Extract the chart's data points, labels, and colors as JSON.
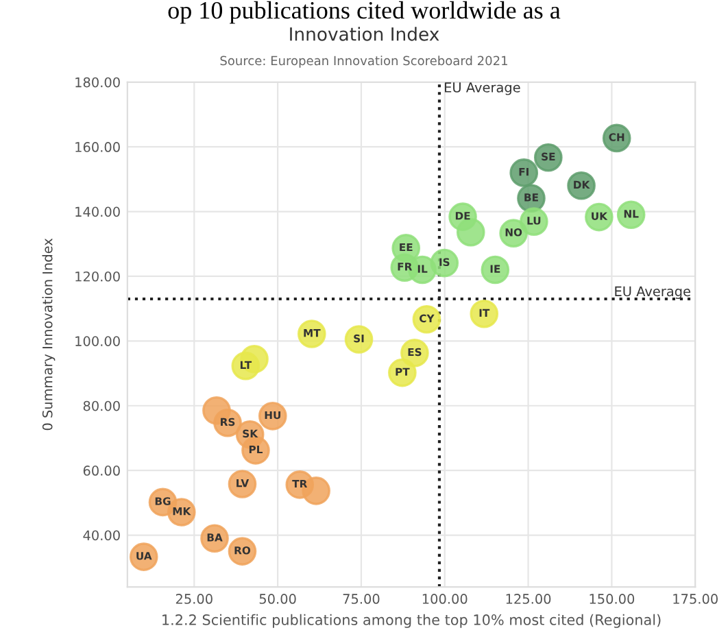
{
  "chart_data": {
    "type": "scatter",
    "title": "Innovation Index",
    "subtitle": "Source: European Innovation Scoreboard 2021",
    "xlabel": "1.2.2 Scientific publications among the top 10% most cited (Regional)",
    "ylabel": "0 Summary Innovation Index",
    "series": [
      {
        "color": "#5e9e6c",
        "x": [
          151.5,
          131,
          123.7,
          140.9,
          125.9
        ],
        "values": [
          162.7,
          156.7,
          152,
          148,
          144.1
        ]
      },
      {
        "color": "#8fdf7a",
        "x": [
          105.4,
          107.8,
          120.6,
          126.7,
          146.2,
          155.8,
          88.4,
          88,
          93.3,
          99.9,
          115.1
        ],
        "values": [
          138.4,
          133.6,
          133.3,
          136.9,
          138.3,
          139,
          128.7,
          122.7,
          122,
          124.1,
          122
        ]
      },
      {
        "color": "#e6e84c",
        "x": [
          94.6,
          111.8,
          91,
          87.3,
          60.2,
          74.3,
          43,
          40.4
        ],
        "values": [
          106.7,
          108.4,
          96.3,
          90.2,
          102.2,
          100.5,
          94.4,
          92.3
        ]
      },
      {
        "color": "#f0a35c",
        "x": [
          31.7,
          35,
          48.5,
          41.7,
          43.4,
          39.4,
          56.6,
          61.5,
          15.6,
          21.2,
          31.1,
          39.4,
          9.9
        ],
        "values": [
          78.5,
          74.7,
          76.8,
          71.1,
          66.2,
          55.8,
          55.6,
          53.7,
          50.2,
          47.1,
          39,
          35,
          33.3
        ]
      }
    ],
    "xlim": [
      5,
      175
    ],
    "ylim": [
      24,
      180
    ],
    "xticks": [
      {
        "value": 25,
        "label": "25.00"
      },
      {
        "value": 50,
        "label": "50.00"
      },
      {
        "value": 75,
        "label": "75.00"
      },
      {
        "value": 100,
        "label": "100.00"
      },
      {
        "value": 125,
        "label": "125.00"
      },
      {
        "value": 150,
        "label": "150.00"
      },
      {
        "value": 175,
        "label": "175.00"
      }
    ],
    "yticks": [
      {
        "value": 40,
        "label": "40.00"
      },
      {
        "value": 60,
        "label": "60.00"
      },
      {
        "value": 80,
        "label": "80.00"
      },
      {
        "value": 100,
        "label": "100.00"
      },
      {
        "value": 120,
        "label": "120.00"
      },
      {
        "value": 140,
        "label": "140.00"
      },
      {
        "value": 160,
        "label": "160.00"
      },
      {
        "value": 180,
        "label": "180.00"
      }
    ],
    "grid": true,
    "marker": "circle",
    "ref_lines": [
      {
        "axis": "x",
        "value": 98.4,
        "label": "EU Average",
        "color": "#222222",
        "line_style": "dotted"
      },
      {
        "axis": "y",
        "value": 113,
        "label": "EU Average",
        "color": "#222222",
        "line_style": "dotted"
      }
    ],
    "annotations": [
      "op 10 publications cited worldwide as a",
      {
        "text": "CH",
        "x": 151.5,
        "y": 162.7
      },
      {
        "text": "SE",
        "x": 131,
        "y": 156.7
      },
      {
        "text": "FI",
        "x": 123.7,
        "y": 152
      },
      {
        "text": "DK",
        "x": 140.9,
        "y": 148
      },
      {
        "text": "BE",
        "x": 125.9,
        "y": 144.1
      },
      {
        "text": "DE",
        "x": 105.4,
        "y": 138.4
      },
      {
        "text": "NO",
        "x": 120.6,
        "y": 133.3
      },
      {
        "text": "LU",
        "x": 126.7,
        "y": 136.9
      },
      {
        "text": "UK",
        "x": 146.2,
        "y": 138.3
      },
      {
        "text": "NL",
        "x": 155.8,
        "y": 139
      },
      {
        "text": "EE",
        "x": 88.4,
        "y": 128.7
      },
      {
        "text": "FR",
        "x": 88,
        "y": 122.7
      },
      {
        "text": "IL",
        "x": 93.3,
        "y": 122
      },
      {
        "text": "IS",
        "x": 99.9,
        "y": 124.1
      },
      {
        "text": "IE",
        "x": 115.1,
        "y": 122
      },
      {
        "text": "CY",
        "x": 94.6,
        "y": 106.7
      },
      {
        "text": "IT",
        "x": 111.8,
        "y": 108.4
      },
      {
        "text": "ES",
        "x": 91,
        "y": 96.3
      },
      {
        "text": "PT",
        "x": 87.3,
        "y": 90.2
      },
      {
        "text": "MT",
        "x": 60.2,
        "y": 102.2
      },
      {
        "text": "SI",
        "x": 74.3,
        "y": 100.5
      },
      {
        "text": "LT",
        "x": 40.4,
        "y": 92.3
      },
      {
        "text": "RS",
        "x": 35,
        "y": 74.7
      },
      {
        "text": "HU",
        "x": 48.5,
        "y": 76.8
      },
      {
        "text": "SK",
        "x": 41.7,
        "y": 71.1
      },
      {
        "text": "PL",
        "x": 43.4,
        "y": 66.2
      },
      {
        "text": "LV",
        "x": 39.4,
        "y": 55.8
      },
      {
        "text": "TR",
        "x": 56.6,
        "y": 55.6
      },
      {
        "text": "BG",
        "x": 15.6,
        "y": 50.2
      },
      {
        "text": "MK",
        "x": 21.2,
        "y": 47.1
      },
      {
        "text": "BA",
        "x": 31.1,
        "y": 39
      },
      {
        "text": "RO",
        "x": 39.4,
        "y": 35
      },
      {
        "text": "UA",
        "x": 9.9,
        "y": 33.3
      }
    ]
  }
}
